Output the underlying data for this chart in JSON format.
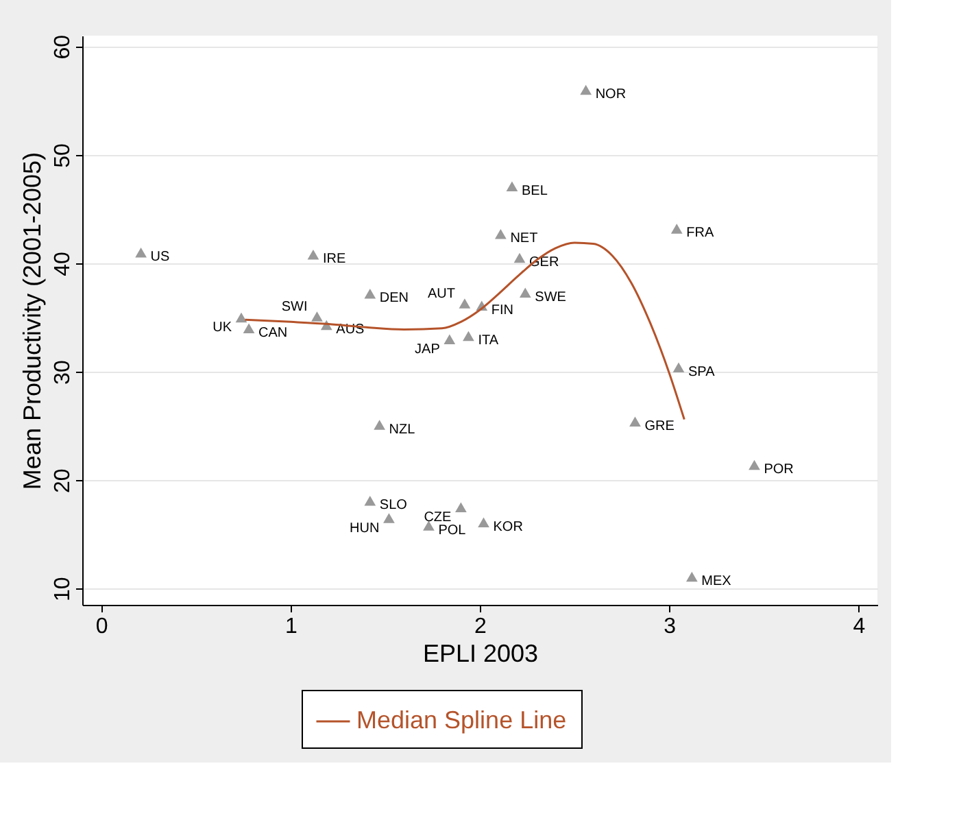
{
  "chart_data": {
    "type": "scatter",
    "xlabel": "EPLI 2003",
    "ylabel": "Mean Productivity (2001-2005)",
    "xlim": [
      -0.1,
      4.1
    ],
    "ylim": [
      8.5,
      61
    ],
    "xticks": [
      0,
      1,
      2,
      3,
      4
    ],
    "yticks": [
      10,
      20,
      30,
      40,
      50,
      60
    ],
    "grid": "y",
    "legend": "bottom",
    "series": [
      {
        "marker": "triangle",
        "color": "#999999",
        "x": [
          0.21,
          1.12,
          0.74,
          0.78,
          1.14,
          1.19,
          1.42,
          1.47,
          1.42,
          1.52,
          1.73,
          1.9,
          2.02,
          1.84,
          1.94,
          1.92,
          2.01,
          2.11,
          2.17,
          2.21,
          2.24,
          2.56,
          3.04,
          3.05,
          2.82,
          3.45,
          3.12
        ],
        "values": [
          41.0,
          40.8,
          35.0,
          34.0,
          35.1,
          34.3,
          37.2,
          25.1,
          18.1,
          16.5,
          15.8,
          17.5,
          16.1,
          33.0,
          33.3,
          36.3,
          36.1,
          42.7,
          47.1,
          40.5,
          37.3,
          56.0,
          43.2,
          30.4,
          25.4,
          21.4,
          11.1
        ],
        "value_labels": [
          "US",
          "IRE",
          "UK",
          "CAN",
          "SWI",
          "AUS",
          "DEN",
          "NZL",
          "SLO",
          "HUN",
          "POL",
          "CZE",
          "KOR",
          "JAP",
          "ITA",
          "AUT",
          "FIN",
          "NET",
          "BEL",
          "GER",
          "SWE",
          "NOR",
          "FRA",
          "SPA",
          "GRE",
          "POR",
          "MEX"
        ]
      },
      {
        "type": "line",
        "name": "Median Spline Line",
        "color": "#b5532a",
        "x": [
          0.76,
          1.0,
          1.2,
          1.4,
          1.6,
          1.8,
          1.9,
          2.0,
          2.1,
          2.2,
          2.3,
          2.4,
          2.5,
          2.6,
          2.7,
          2.8,
          2.9,
          3.0,
          3.08
        ],
        "values": [
          34.8,
          34.6,
          34.4,
          34.1,
          33.9,
          34.0,
          34.6,
          35.7,
          37.2,
          38.8,
          40.3,
          41.4,
          41.9,
          41.8,
          40.7,
          38.2,
          34.5,
          29.9,
          25.6
        ]
      }
    ]
  }
}
